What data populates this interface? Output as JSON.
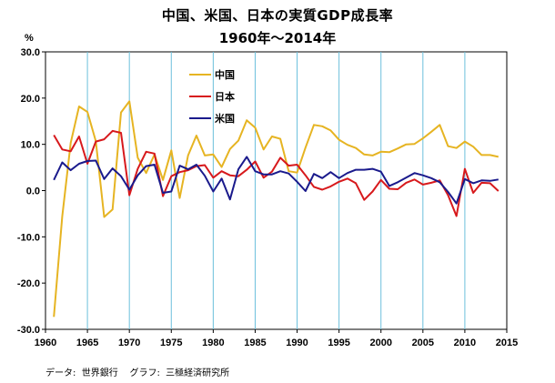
{
  "chart_data": {
    "type": "line",
    "title": "中国、米国、日本の実質GDP成長率",
    "subtitle": "1960年～2014年",
    "ylabel": "%",
    "ylim": [
      -30,
      30
    ],
    "xlim": [
      1960,
      2015
    ],
    "yticks": [
      "30.0",
      "20.0",
      "10.0",
      "0.0",
      "-10.0",
      "-20.0",
      "-30.0"
    ],
    "ytick_values": [
      30,
      20,
      10,
      0,
      -10,
      -20,
      -30
    ],
    "xticks": [
      1960,
      1965,
      1970,
      1975,
      1980,
      1985,
      1990,
      1995,
      2000,
      2005,
      2010,
      2015
    ],
    "grid": "vertical",
    "legend_position": "top-left",
    "series": [
      {
        "name": "中国",
        "color": "#e6b422",
        "x": [
          1961,
          1962,
          1963,
          1964,
          1965,
          1966,
          1967,
          1968,
          1969,
          1970,
          1971,
          1972,
          1973,
          1974,
          1975,
          1976,
          1977,
          1978,
          1979,
          1980,
          1981,
          1982,
          1983,
          1984,
          1985,
          1986,
          1987,
          1988,
          1989,
          1990,
          1991,
          1992,
          1993,
          1994,
          1995,
          1996,
          1997,
          1998,
          1999,
          2000,
          2001,
          2002,
          2003,
          2004,
          2005,
          2006,
          2007,
          2008,
          2009,
          2010,
          2011,
          2012,
          2013,
          2014
        ],
        "values": [
          -27.3,
          -5.6,
          10.3,
          18.2,
          17.0,
          10.7,
          -5.7,
          -4.1,
          16.9,
          19.3,
          7.1,
          3.8,
          7.8,
          2.3,
          8.7,
          -1.6,
          7.6,
          11.9,
          7.6,
          7.8,
          5.1,
          9.0,
          10.8,
          15.2,
          13.6,
          8.9,
          11.7,
          11.2,
          4.2,
          3.9,
          9.3,
          14.2,
          13.9,
          13.0,
          11.0,
          9.9,
          9.2,
          7.8,
          7.6,
          8.4,
          8.3,
          9.1,
          10.0,
          10.1,
          11.3,
          12.7,
          14.2,
          9.6,
          9.2,
          10.6,
          9.5,
          7.7,
          7.7,
          7.3
        ]
      },
      {
        "name": "日本",
        "color": "#d7191c",
        "x": [
          1961,
          1962,
          1963,
          1964,
          1965,
          1966,
          1967,
          1968,
          1969,
          1970,
          1971,
          1972,
          1973,
          1974,
          1975,
          1976,
          1977,
          1978,
          1979,
          1980,
          1981,
          1982,
          1983,
          1984,
          1985,
          1986,
          1987,
          1988,
          1989,
          1990,
          1991,
          1992,
          1993,
          1994,
          1995,
          1996,
          1997,
          1998,
          1999,
          2000,
          2001,
          2002,
          2003,
          2004,
          2005,
          2006,
          2007,
          2008,
          2009,
          2010,
          2011,
          2012,
          2013,
          2014
        ],
        "values": [
          12.0,
          8.9,
          8.5,
          11.7,
          5.8,
          10.6,
          11.1,
          12.9,
          12.5,
          -1.0,
          4.7,
          8.4,
          8.0,
          -1.2,
          3.1,
          4.0,
          4.4,
          5.3,
          5.5,
          2.8,
          4.2,
          3.3,
          3.1,
          4.5,
          6.3,
          2.8,
          4.1,
          7.1,
          5.4,
          5.6,
          3.3,
          0.8,
          0.2,
          0.9,
          1.9,
          2.6,
          1.6,
          -2.0,
          -0.2,
          2.3,
          0.4,
          0.3,
          1.7,
          2.4,
          1.3,
          1.7,
          2.2,
          -1.0,
          -5.5,
          4.7,
          -0.5,
          1.7,
          1.6,
          -0.1
        ]
      },
      {
        "name": "米国",
        "color": "#1a1a8c",
        "x": [
          1961,
          1962,
          1963,
          1964,
          1965,
          1966,
          1967,
          1968,
          1969,
          1970,
          1971,
          1972,
          1973,
          1974,
          1975,
          1976,
          1977,
          1978,
          1979,
          1980,
          1981,
          1982,
          1983,
          1984,
          1985,
          1986,
          1987,
          1988,
          1989,
          1990,
          1991,
          1992,
          1993,
          1994,
          1995,
          1996,
          1997,
          1998,
          1999,
          2000,
          2001,
          2002,
          2003,
          2004,
          2005,
          2006,
          2007,
          2008,
          2009,
          2010,
          2011,
          2012,
          2013,
          2014
        ],
        "values": [
          2.3,
          6.1,
          4.4,
          5.8,
          6.4,
          6.5,
          2.5,
          4.8,
          3.1,
          0.2,
          3.3,
          5.3,
          5.6,
          -0.5,
          -0.2,
          5.4,
          4.6,
          5.6,
          3.2,
          -0.2,
          2.6,
          -1.9,
          4.6,
          7.3,
          4.2,
          3.5,
          3.5,
          4.2,
          3.7,
          1.9,
          -0.1,
          3.6,
          2.7,
          4.0,
          2.7,
          3.8,
          4.5,
          4.5,
          4.7,
          4.1,
          1.0,
          1.8,
          2.8,
          3.8,
          3.3,
          2.7,
          1.8,
          -0.3,
          -2.8,
          2.5,
          1.6,
          2.2,
          2.1,
          2.4
        ]
      }
    ]
  },
  "footer": {
    "source": "データ:  世界銀行    グラフ:  三極経済研究所"
  }
}
